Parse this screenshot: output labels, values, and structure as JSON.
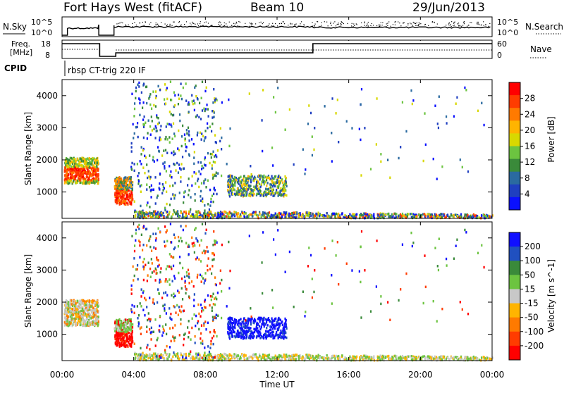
{
  "header": {
    "station": "Fort Hays West (fitACF)",
    "beam": "Beam 10",
    "date": "29/Jun/2013"
  },
  "noise_panel": {
    "left_label": "N.Sky",
    "right_label": "N.Search",
    "left_ticks": [
      "10^5",
      "10^0"
    ],
    "right_ticks": [
      "10^5",
      "10^0"
    ]
  },
  "freq_panel": {
    "left_label_line1": "Freq.",
    "left_label_line2": "[MHz]",
    "right_label": "Nave",
    "left_ticks": [
      "18",
      "8"
    ],
    "right_ticks": [
      "60",
      "0"
    ]
  },
  "cpid_panel": {
    "label": "CPID",
    "text": "rbsp CT-trig 220 IF"
  },
  "x_axis": {
    "label": "Time UT",
    "ticks": [
      "00:00",
      "04:00",
      "08:00",
      "12:00",
      "16:00",
      "20:00",
      "00:00"
    ]
  },
  "power_colorbar": {
    "label": "Power [dB]",
    "ticks": [
      "28",
      "24",
      "20",
      "16",
      "12",
      "8",
      "4"
    ],
    "colors": [
      "#ff0000",
      "#ff3c00",
      "#ff7a00",
      "#ffb400",
      "#d8d800",
      "#6cc440",
      "#3a8a3a",
      "#2a6aa0",
      "#1f3fc0",
      "#0a10ff"
    ]
  },
  "velocity_colorbar": {
    "label": "Velocity [m s^-1]",
    "ticks": [
      "200",
      "100",
      "50",
      "15",
      "-15",
      "-50",
      "-100",
      "-200"
    ],
    "colors": [
      "#1010ff",
      "#2050c0",
      "#3a8a3a",
      "#6cc440",
      "#c8c8c8",
      "#ffb400",
      "#ff7a00",
      "#ff3c00",
      "#ff0000"
    ]
  },
  "chart_data": [
    {
      "type": "heatmap",
      "title": "",
      "xlabel": "",
      "ylabel": "Slant Range [km]",
      "y_ticks": [
        "4000",
        "3000",
        "2000",
        "1000"
      ],
      "xlim": [
        0,
        24
      ],
      "ylim": [
        180,
        4500
      ],
      "colorbar_label": "Power [dB]",
      "clim": [
        3,
        30
      ]
    },
    {
      "type": "heatmap",
      "title": "",
      "xlabel": "Time UT",
      "ylabel": "Slant Range [km]",
      "y_ticks": [
        "4000",
        "3000",
        "2000",
        "1000"
      ],
      "xlim": [
        0,
        24
      ],
      "ylim": [
        180,
        4500
      ],
      "colorbar_label": "Velocity [m s^-1]",
      "clim": [
        -250,
        250
      ]
    }
  ]
}
